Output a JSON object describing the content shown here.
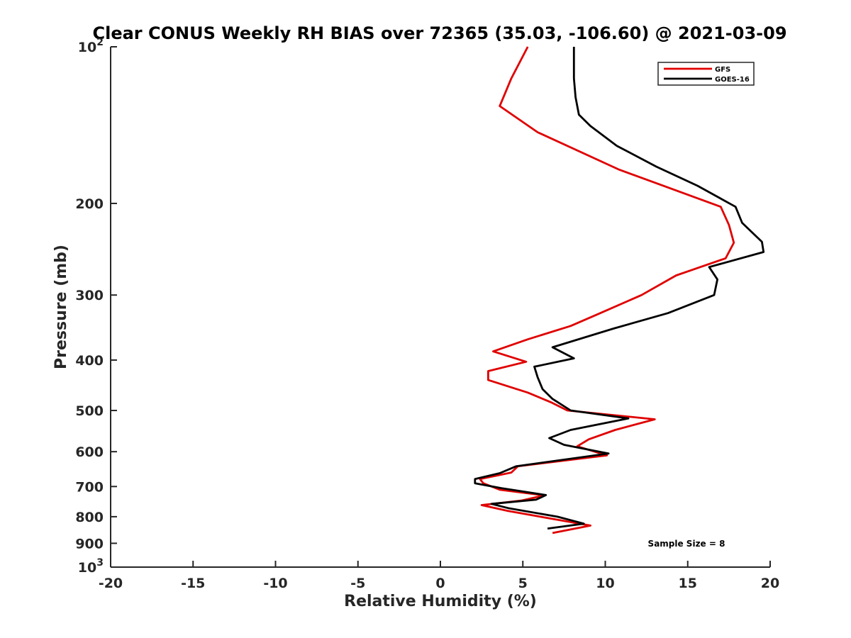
{
  "chart_data": {
    "type": "line",
    "title": "Clear CONUS Weekly RH BIAS over 72365 (35.03, -106.60) @ 2021-03-09",
    "xlabel": "Relative Humidity (%)",
    "ylabel": "Pressure (mb)",
    "xlim": [
      -20,
      20
    ],
    "ylim": [
      100,
      1000
    ],
    "yscale": "log",
    "y_reversed": true,
    "grid": false,
    "legend_position": "top-right",
    "annotation": "Sample Size = 8",
    "x_ticks": [
      "-20",
      "-15",
      "-10",
      "-5",
      "0",
      "5",
      "10",
      "15",
      "20"
    ],
    "y_ticks": [
      {
        "value": 100,
        "base": "10",
        "exp": "2"
      },
      {
        "value": 200,
        "label": "200"
      },
      {
        "value": 300,
        "label": "300"
      },
      {
        "value": 400,
        "label": "400"
      },
      {
        "value": 500,
        "label": "500"
      },
      {
        "value": 600,
        "label": "600"
      },
      {
        "value": 700,
        "label": "700"
      },
      {
        "value": 800,
        "label": "800"
      },
      {
        "value": 900,
        "label": "900"
      },
      {
        "value": 1000,
        "base": "10",
        "exp": "3"
      }
    ],
    "series": [
      {
        "name": "GFS",
        "color": "#e00000",
        "points": [
          [
            5.3,
            100
          ],
          [
            4.3,
            115
          ],
          [
            3.6,
            130
          ],
          [
            5.9,
            146
          ],
          [
            10.8,
            172
          ],
          [
            17.0,
            203
          ],
          [
            17.5,
            220
          ],
          [
            17.8,
            238
          ],
          [
            17.3,
            255
          ],
          [
            14.3,
            275
          ],
          [
            12.2,
            300
          ],
          [
            9.6,
            326
          ],
          [
            7.9,
            344
          ],
          [
            5.3,
            365
          ],
          [
            3.2,
            385
          ],
          [
            5.2,
            403
          ],
          [
            2.9,
            420
          ],
          [
            2.9,
            437
          ],
          [
            5.3,
            462
          ],
          [
            6.7,
            482
          ],
          [
            7.7,
            500
          ],
          [
            13.0,
            520
          ],
          [
            10.6,
            545
          ],
          [
            9.0,
            568
          ],
          [
            8.3,
            586
          ],
          [
            10.1,
            610
          ],
          [
            4.7,
            640
          ],
          [
            4.3,
            658
          ],
          [
            2.4,
            677
          ],
          [
            2.6,
            690
          ],
          [
            3.6,
            710
          ],
          [
            6.3,
            728
          ],
          [
            4.9,
            745
          ],
          [
            2.5,
            760
          ],
          [
            4.1,
            780
          ],
          [
            9.1,
            832
          ],
          [
            6.8,
            860
          ]
        ]
      },
      {
        "name": "GOES-16",
        "color": "#000000",
        "points": [
          [
            8.1,
            100
          ],
          [
            8.1,
            115
          ],
          [
            8.2,
            125
          ],
          [
            8.4,
            135
          ],
          [
            9.1,
            142
          ],
          [
            10.7,
            155
          ],
          [
            13.1,
            170
          ],
          [
            15.6,
            185
          ],
          [
            17.9,
            203
          ],
          [
            18.3,
            218
          ],
          [
            19.5,
            237
          ],
          [
            19.6,
            248
          ],
          [
            16.3,
            265
          ],
          [
            16.8,
            280
          ],
          [
            16.6,
            300
          ],
          [
            13.8,
            325
          ],
          [
            10.5,
            348
          ],
          [
            6.8,
            378
          ],
          [
            8.1,
            397
          ],
          [
            5.7,
            412
          ],
          [
            5.9,
            432
          ],
          [
            6.2,
            455
          ],
          [
            6.8,
            475
          ],
          [
            7.9,
            500
          ],
          [
            11.4,
            518
          ],
          [
            7.9,
            545
          ],
          [
            6.6,
            565
          ],
          [
            7.5,
            582
          ],
          [
            10.2,
            605
          ],
          [
            4.6,
            640
          ],
          [
            3.6,
            660
          ],
          [
            2.1,
            677
          ],
          [
            2.1,
            690
          ],
          [
            3.7,
            705
          ],
          [
            6.4,
            727
          ],
          [
            5.8,
            742
          ],
          [
            3.1,
            756
          ],
          [
            4.1,
            770
          ],
          [
            7.1,
            800
          ],
          [
            8.7,
            825
          ],
          [
            6.5,
            843
          ]
        ]
      }
    ]
  }
}
